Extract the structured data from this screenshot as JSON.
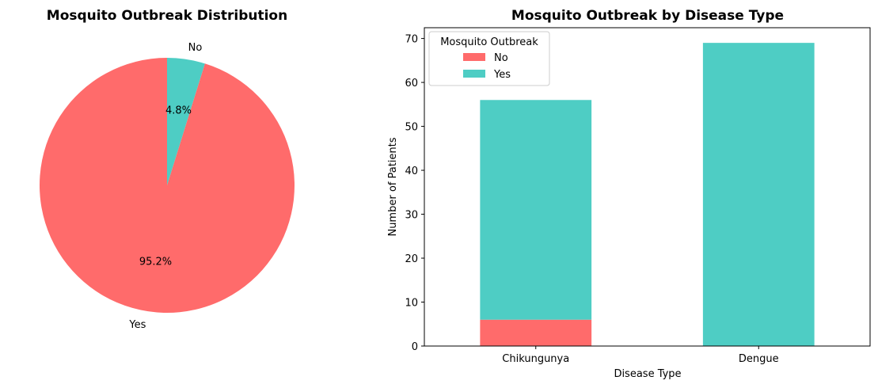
{
  "chart_data": [
    {
      "type": "pie",
      "title": "Mosquito Outbreak Distribution",
      "slices": [
        {
          "label": "Yes",
          "value": 95.2,
          "pct_label": "95.2%",
          "color": "#ff6b6b"
        },
        {
          "label": "No",
          "value": 4.8,
          "pct_label": "4.8%",
          "color": "#4ecdc4"
        }
      ]
    },
    {
      "type": "bar",
      "stacked": true,
      "title": "Mosquito Outbreak by Disease Type",
      "xlabel": "Disease Type",
      "ylabel": "Number of Patients",
      "categories": [
        "Chikungunya",
        "Dengue"
      ],
      "series": [
        {
          "name": "No",
          "values": [
            6,
            0
          ],
          "color": "#ff6b6b"
        },
        {
          "name": "Yes",
          "values": [
            50,
            69
          ],
          "color": "#4ecdc4"
        }
      ],
      "ylim": [
        0,
        72.45
      ],
      "yticks": [
        0,
        10,
        20,
        30,
        40,
        50,
        60,
        70
      ],
      "legend": {
        "title": "Mosquito Outbreak",
        "position": "top-left"
      }
    }
  ]
}
